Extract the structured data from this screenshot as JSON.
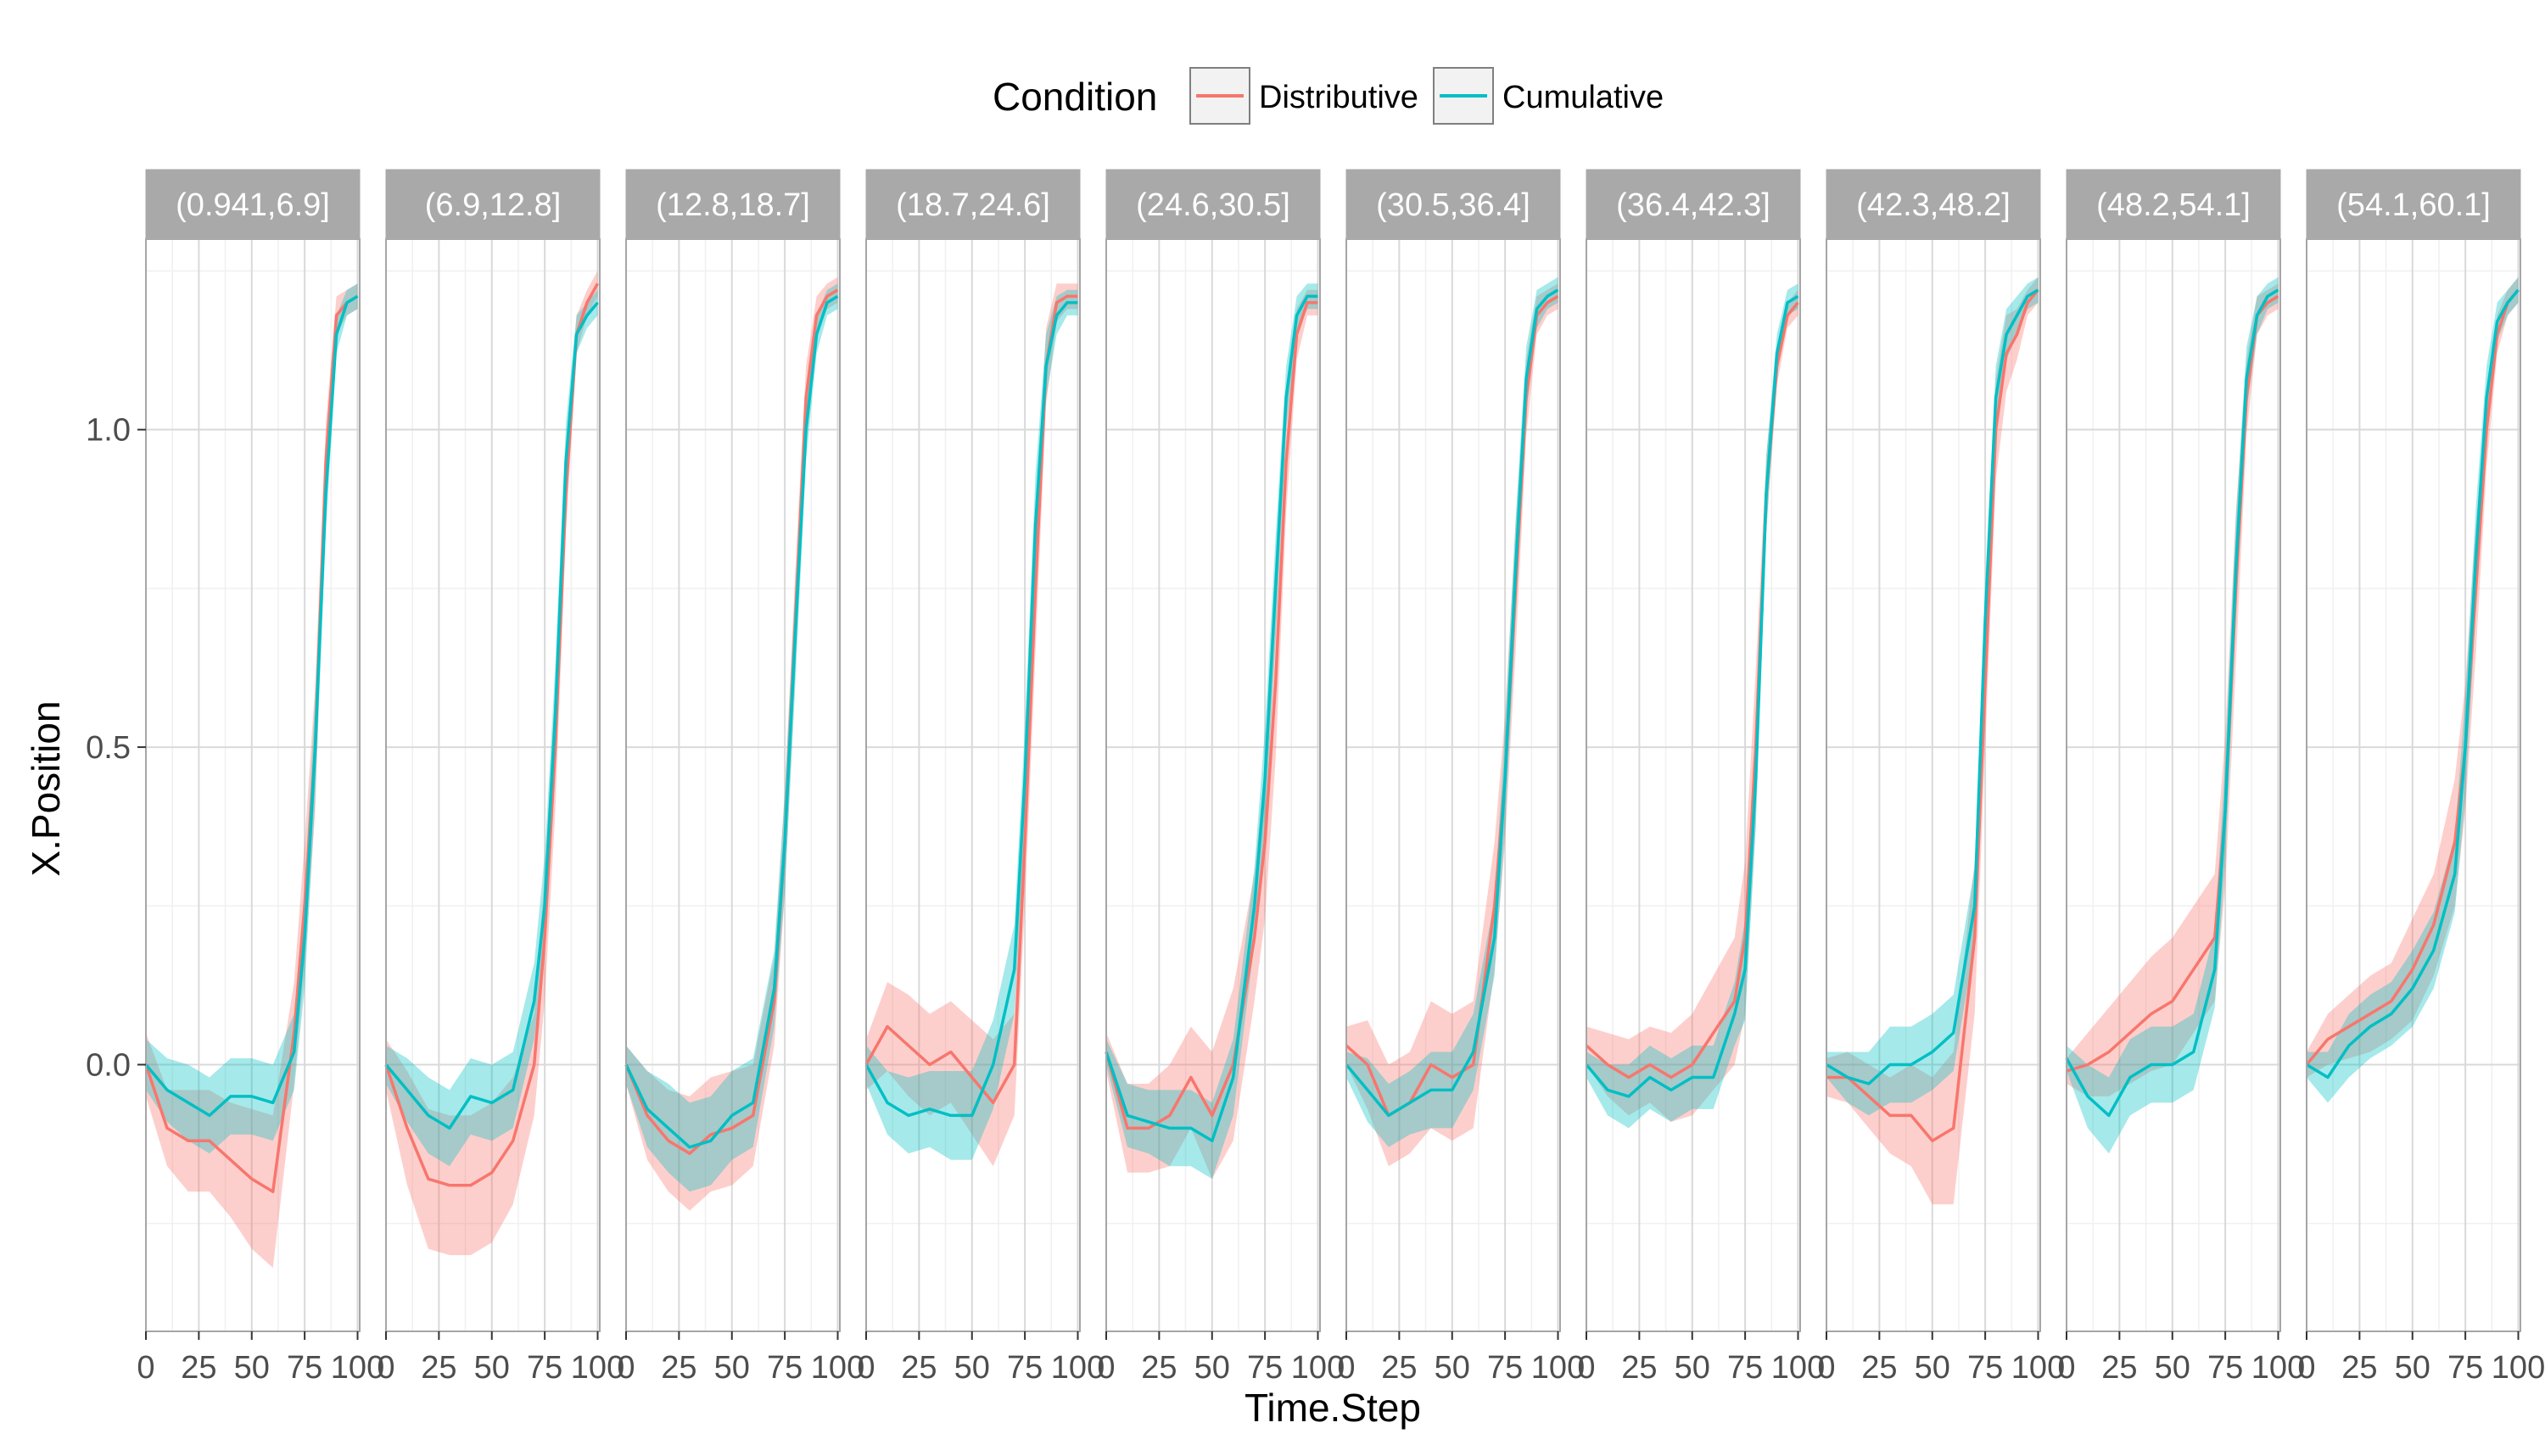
{
  "chart_data": {
    "type": "line",
    "xlabel": "Time.Step",
    "ylabel": "X.Position",
    "xlim": [
      0,
      101
    ],
    "ylim": [
      -0.42,
      1.3
    ],
    "x_ticks": [
      0,
      25,
      50,
      75,
      100
    ],
    "y_ticks": [
      0.0,
      0.5,
      1.0
    ],
    "y_tick_labels": [
      "0.0",
      "0.5",
      "1.0"
    ],
    "grid": true,
    "legend": {
      "title": "Condition",
      "placement": "top",
      "entries": [
        {
          "name": "Distributive",
          "color": "#F8766D"
        },
        {
          "name": "Cumulative",
          "color": "#00BFC4"
        }
      ]
    },
    "band_colors": {
      "Distributive": "#F8766D",
      "Cumulative": "#00BFC4"
    },
    "panels": [
      {
        "label": "(0.941,6.9]",
        "x": [
          0,
          10,
          20,
          30,
          40,
          50,
          60,
          70,
          75,
          80,
          85,
          90,
          95,
          100
        ],
        "series": [
          {
            "name": "Distributive",
            "values": [
              0.0,
              -0.1,
              -0.12,
              -0.12,
              -0.15,
              -0.18,
              -0.2,
              0.05,
              0.25,
              0.5,
              0.95,
              1.18,
              1.2,
              1.21
            ],
            "band": [
              0.05,
              0.06,
              0.08,
              0.08,
              0.09,
              0.11,
              0.12,
              0.08,
              0.1,
              0.1,
              0.06,
              0.03,
              0.02,
              0.02
            ]
          },
          {
            "name": "Cumulative",
            "values": [
              0.0,
              -0.04,
              -0.06,
              -0.08,
              -0.05,
              -0.05,
              -0.06,
              0.02,
              0.2,
              0.5,
              0.9,
              1.15,
              1.2,
              1.21
            ],
            "band": [
              0.04,
              0.05,
              0.06,
              0.06,
              0.06,
              0.06,
              0.06,
              0.06,
              0.08,
              0.08,
              0.06,
              0.03,
              0.02,
              0.02
            ]
          }
        ]
      },
      {
        "label": "(6.9,12.8]",
        "x": [
          0,
          10,
          20,
          30,
          40,
          50,
          60,
          70,
          75,
          80,
          85,
          90,
          95,
          100
        ],
        "series": [
          {
            "name": "Distributive",
            "values": [
              0.0,
              -0.1,
              -0.18,
              -0.19,
              -0.19,
              -0.17,
              -0.12,
              0.0,
              0.2,
              0.5,
              0.9,
              1.15,
              1.2,
              1.23
            ],
            "band": [
              0.04,
              0.09,
              0.11,
              0.11,
              0.11,
              0.11,
              0.1,
              0.08,
              0.1,
              0.1,
              0.06,
              0.03,
              0.02,
              0.02
            ]
          },
          {
            "name": "Cumulative",
            "values": [
              0.0,
              -0.04,
              -0.08,
              -0.1,
              -0.05,
              -0.06,
              -0.04,
              0.1,
              0.25,
              0.55,
              0.95,
              1.15,
              1.18,
              1.2
            ],
            "band": [
              0.03,
              0.05,
              0.06,
              0.06,
              0.06,
              0.06,
              0.06,
              0.06,
              0.08,
              0.08,
              0.06,
              0.03,
              0.02,
              0.02
            ]
          }
        ]
      },
      {
        "label": "(12.8,18.7]",
        "x": [
          0,
          10,
          20,
          30,
          40,
          50,
          60,
          70,
          75,
          80,
          85,
          90,
          95,
          100
        ],
        "series": [
          {
            "name": "Distributive",
            "values": [
              0.0,
              -0.08,
              -0.12,
              -0.14,
              -0.11,
              -0.1,
              -0.08,
              0.1,
              0.35,
              0.7,
              1.05,
              1.18,
              1.21,
              1.22
            ],
            "band": [
              0.03,
              0.07,
              0.08,
              0.09,
              0.09,
              0.09,
              0.08,
              0.07,
              0.08,
              0.08,
              0.05,
              0.03,
              0.02,
              0.02
            ]
          },
          {
            "name": "Cumulative",
            "values": [
              0.0,
              -0.07,
              -0.1,
              -0.13,
              -0.12,
              -0.08,
              -0.06,
              0.12,
              0.35,
              0.68,
              1.0,
              1.15,
              1.2,
              1.21
            ],
            "band": [
              0.03,
              0.06,
              0.07,
              0.07,
              0.07,
              0.07,
              0.07,
              0.06,
              0.08,
              0.08,
              0.05,
              0.03,
              0.02,
              0.02
            ]
          }
        ]
      },
      {
        "label": "(18.7,24.6]",
        "x": [
          0,
          10,
          20,
          30,
          40,
          50,
          60,
          70,
          75,
          80,
          85,
          90,
          95,
          100
        ],
        "series": [
          {
            "name": "Distributive",
            "values": [
              0.0,
              0.06,
              0.03,
              0.0,
              0.02,
              -0.02,
              -0.06,
              0.0,
              0.35,
              0.75,
              1.1,
              1.2,
              1.21,
              1.21
            ],
            "band": [
              0.04,
              0.07,
              0.08,
              0.08,
              0.08,
              0.09,
              0.1,
              0.08,
              0.1,
              0.1,
              0.06,
              0.03,
              0.02,
              0.02
            ]
          },
          {
            "name": "Cumulative",
            "values": [
              0.0,
              -0.06,
              -0.08,
              -0.07,
              -0.08,
              -0.08,
              0.0,
              0.15,
              0.45,
              0.85,
              1.1,
              1.18,
              1.2,
              1.2
            ],
            "band": [
              0.03,
              0.05,
              0.06,
              0.06,
              0.07,
              0.07,
              0.07,
              0.07,
              0.08,
              0.08,
              0.05,
              0.03,
              0.02,
              0.02
            ]
          }
        ]
      },
      {
        "label": "(24.6,30.5]",
        "x": [
          0,
          10,
          20,
          30,
          40,
          50,
          60,
          70,
          75,
          80,
          85,
          90,
          95,
          100
        ],
        "series": [
          {
            "name": "Distributive",
            "values": [
              0.02,
              -0.1,
              -0.1,
              -0.08,
              -0.02,
              -0.08,
              0.0,
              0.2,
              0.35,
              0.6,
              0.95,
              1.15,
              1.2,
              1.2
            ],
            "band": [
              0.03,
              0.07,
              0.07,
              0.08,
              0.08,
              0.1,
              0.12,
              0.1,
              0.12,
              0.12,
              0.08,
              0.04,
              0.02,
              0.02
            ]
          },
          {
            "name": "Cumulative",
            "values": [
              0.02,
              -0.08,
              -0.09,
              -0.1,
              -0.1,
              -0.12,
              -0.02,
              0.25,
              0.45,
              0.75,
              1.05,
              1.18,
              1.21,
              1.21
            ],
            "band": [
              0.02,
              0.05,
              0.05,
              0.06,
              0.06,
              0.06,
              0.06,
              0.06,
              0.08,
              0.08,
              0.05,
              0.03,
              0.02,
              0.02
            ]
          }
        ]
      },
      {
        "label": "(30.5,36.4]",
        "x": [
          0,
          10,
          20,
          30,
          40,
          50,
          60,
          70,
          75,
          80,
          85,
          90,
          95,
          100
        ],
        "series": [
          {
            "name": "Distributive",
            "values": [
              0.03,
              0.0,
              -0.08,
              -0.06,
              0.0,
              -0.02,
              0.0,
              0.25,
              0.45,
              0.75,
              1.05,
              1.18,
              1.2,
              1.21
            ],
            "band": [
              0.03,
              0.07,
              0.08,
              0.08,
              0.1,
              0.1,
              0.1,
              0.1,
              0.1,
              0.1,
              0.06,
              0.03,
              0.02,
              0.02
            ]
          },
          {
            "name": "Cumulative",
            "values": [
              0.0,
              -0.04,
              -0.08,
              -0.06,
              -0.04,
              -0.04,
              0.02,
              0.2,
              0.45,
              0.78,
              1.08,
              1.19,
              1.21,
              1.22
            ],
            "band": [
              0.02,
              0.05,
              0.05,
              0.05,
              0.06,
              0.06,
              0.06,
              0.06,
              0.08,
              0.08,
              0.05,
              0.03,
              0.02,
              0.02
            ]
          }
        ]
      },
      {
        "label": "(36.4,42.3]",
        "x": [
          0,
          10,
          20,
          30,
          40,
          50,
          60,
          70,
          75,
          80,
          85,
          90,
          95,
          100
        ],
        "series": [
          {
            "name": "Distributive",
            "values": [
              0.03,
              0.0,
              -0.02,
              0.0,
              -0.02,
              0.0,
              0.05,
              0.1,
              0.2,
              0.5,
              0.9,
              1.1,
              1.18,
              1.2
            ],
            "band": [
              0.03,
              0.05,
              0.06,
              0.06,
              0.07,
              0.08,
              0.09,
              0.1,
              0.12,
              0.12,
              0.06,
              0.03,
              0.02,
              0.02
            ]
          },
          {
            "name": "Cumulative",
            "values": [
              0.0,
              -0.04,
              -0.05,
              -0.02,
              -0.04,
              -0.02,
              -0.02,
              0.08,
              0.15,
              0.45,
              0.9,
              1.12,
              1.2,
              1.21
            ],
            "band": [
              0.02,
              0.04,
              0.05,
              0.05,
              0.05,
              0.05,
              0.05,
              0.05,
              0.08,
              0.08,
              0.06,
              0.03,
              0.02,
              0.02
            ]
          }
        ]
      },
      {
        "label": "(42.3,48.2]",
        "x": [
          0,
          10,
          20,
          30,
          40,
          50,
          60,
          70,
          75,
          80,
          85,
          90,
          95,
          100
        ],
        "series": [
          {
            "name": "Distributive",
            "values": [
              -0.02,
              -0.02,
              -0.05,
              -0.08,
              -0.08,
              -0.12,
              -0.1,
              0.2,
              0.6,
              1.0,
              1.12,
              1.15,
              1.2,
              1.22
            ],
            "band": [
              0.03,
              0.04,
              0.05,
              0.06,
              0.08,
              0.1,
              0.12,
              0.12,
              0.1,
              0.08,
              0.06,
              0.04,
              0.02,
              0.02
            ]
          },
          {
            "name": "Cumulative",
            "values": [
              0.0,
              -0.02,
              -0.03,
              0.0,
              0.0,
              0.02,
              0.05,
              0.25,
              0.7,
              1.05,
              1.15,
              1.18,
              1.21,
              1.22
            ],
            "band": [
              0.02,
              0.04,
              0.05,
              0.06,
              0.06,
              0.06,
              0.06,
              0.06,
              0.06,
              0.05,
              0.04,
              0.03,
              0.02,
              0.02
            ]
          }
        ]
      },
      {
        "label": "(48.2,54.1]",
        "x": [
          0,
          10,
          20,
          30,
          40,
          50,
          60,
          70,
          75,
          80,
          85,
          90,
          95,
          100
        ],
        "series": [
          {
            "name": "Distributive",
            "values": [
              -0.01,
              0.0,
              0.02,
              0.05,
              0.08,
              0.1,
              0.15,
              0.2,
              0.4,
              0.75,
              1.05,
              1.18,
              1.2,
              1.21
            ],
            "band": [
              0.02,
              0.05,
              0.07,
              0.08,
              0.09,
              0.1,
              0.1,
              0.1,
              0.12,
              0.12,
              0.06,
              0.03,
              0.02,
              0.02
            ]
          },
          {
            "name": "Cumulative",
            "values": [
              0.01,
              -0.05,
              -0.08,
              -0.02,
              0.0,
              0.0,
              0.02,
              0.15,
              0.4,
              0.78,
              1.08,
              1.18,
              1.21,
              1.22
            ],
            "band": [
              0.02,
              0.05,
              0.06,
              0.06,
              0.06,
              0.06,
              0.06,
              0.06,
              0.08,
              0.08,
              0.05,
              0.03,
              0.02,
              0.02
            ]
          }
        ]
      },
      {
        "label": "(54.1,60.1]",
        "x": [
          0,
          10,
          20,
          30,
          40,
          50,
          60,
          70,
          75,
          80,
          85,
          90,
          95,
          100
        ],
        "series": [
          {
            "name": "Distributive",
            "values": [
              0.0,
              0.04,
              0.06,
              0.08,
              0.1,
              0.15,
              0.22,
              0.35,
              0.5,
              0.75,
              1.0,
              1.15,
              1.2,
              1.22
            ],
            "band": [
              0.02,
              0.04,
              0.05,
              0.06,
              0.06,
              0.08,
              0.08,
              0.1,
              0.1,
              0.1,
              0.06,
              0.03,
              0.02,
              0.02
            ]
          },
          {
            "name": "Cumulative",
            "values": [
              0.0,
              -0.02,
              0.03,
              0.06,
              0.08,
              0.12,
              0.18,
              0.3,
              0.5,
              0.8,
              1.05,
              1.17,
              1.2,
              1.22
            ],
            "band": [
              0.02,
              0.04,
              0.05,
              0.05,
              0.05,
              0.06,
              0.06,
              0.06,
              0.08,
              0.08,
              0.05,
              0.03,
              0.02,
              0.02
            ]
          }
        ]
      }
    ]
  }
}
